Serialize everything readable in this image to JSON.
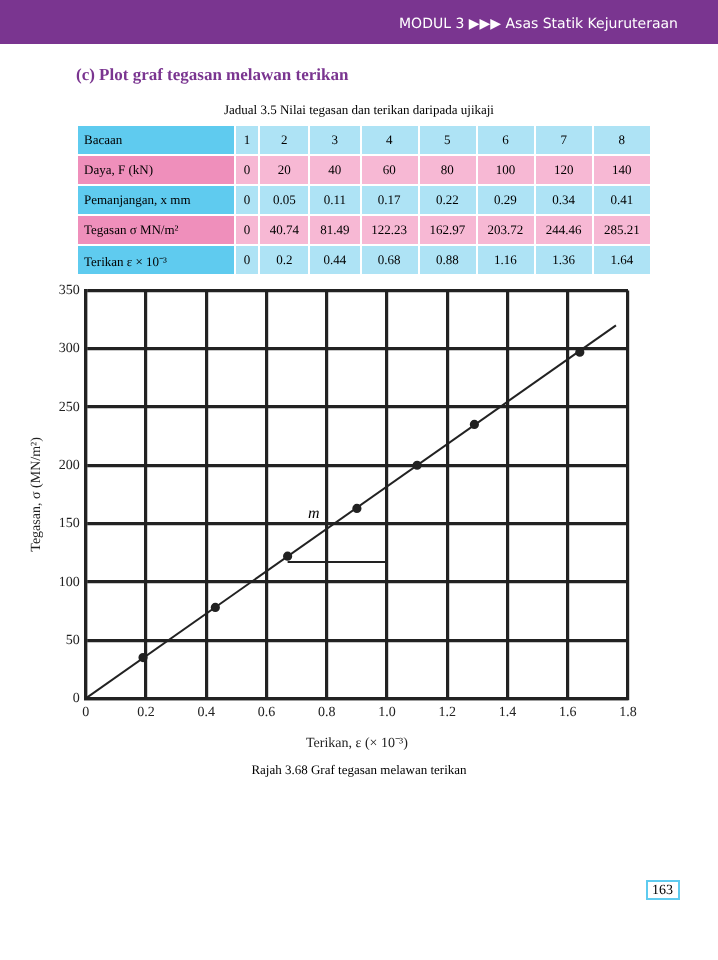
{
  "chart_data": {
    "type": "scatter",
    "title": "(c) Plot graf tegasan melawan terikan",
    "xlabel": "Terikan, ε (× 10⁻³)",
    "ylabel": "Tegasan, σ (MN/m²)",
    "series": [
      {
        "color": "#222222",
        "marker": "circle",
        "x": [
          0.19,
          0.43,
          0.67,
          0.9,
          1.1,
          1.29,
          1.64
        ],
        "values": [
          35,
          78,
          122,
          163,
          200,
          235,
          297
        ]
      },
      {
        "type": "line",
        "color": "#222222",
        "marker": "none",
        "x": [
          0,
          1.76
        ],
        "values": [
          0,
          320
        ]
      },
      {
        "type": "line",
        "color": "#222222",
        "marker": "none",
        "x": [
          0.67,
          1.0
        ],
        "values": [
          117,
          117
        ]
      }
    ],
    "xlim": [
      0,
      1.8
    ],
    "xticks": [
      0,
      0.2,
      0.4,
      0.6,
      0.8,
      {
        "value": 1,
        "label": "1.0"
      },
      1.2,
      1.4,
      1.6,
      1.8
    ],
    "ylim": [
      0,
      350
    ],
    "yticks": [
      0,
      50,
      100,
      150,
      200,
      250,
      300,
      350
    ],
    "grid": true,
    "annotations": [
      "MODUL 3 ▶▶▶ Asas Statik Kejuruteraan",
      "Jadual 3.5 Nilai tegasan dan terikan daripada ujikaji",
      "Bacaan",
      "1",
      "2",
      "3",
      "4",
      "5",
      "6",
      "7",
      "8",
      "Daya, F (kN)",
      "0",
      "20",
      "40",
      "60",
      "80",
      "100",
      "120",
      "140",
      "Pemanjangan, x mm",
      "0",
      "0.05",
      "0.11",
      "0.17",
      "0.22",
      "0.29",
      "0.34",
      "0.41",
      "Tegasan σ MN/m²",
      "0",
      "40.74",
      "81.49",
      "122.23",
      "162.97",
      "203.72",
      "244.46",
      "285.21",
      "Terikan ε × 10⁻³",
      "0",
      "0.2",
      "0.44",
      "0.68",
      "0.88",
      "1.16",
      "1.36",
      "1.64",
      "m",
      "Rajah 3.68 Graf tegasan melawan terikan",
      "163"
    ]
  }
}
